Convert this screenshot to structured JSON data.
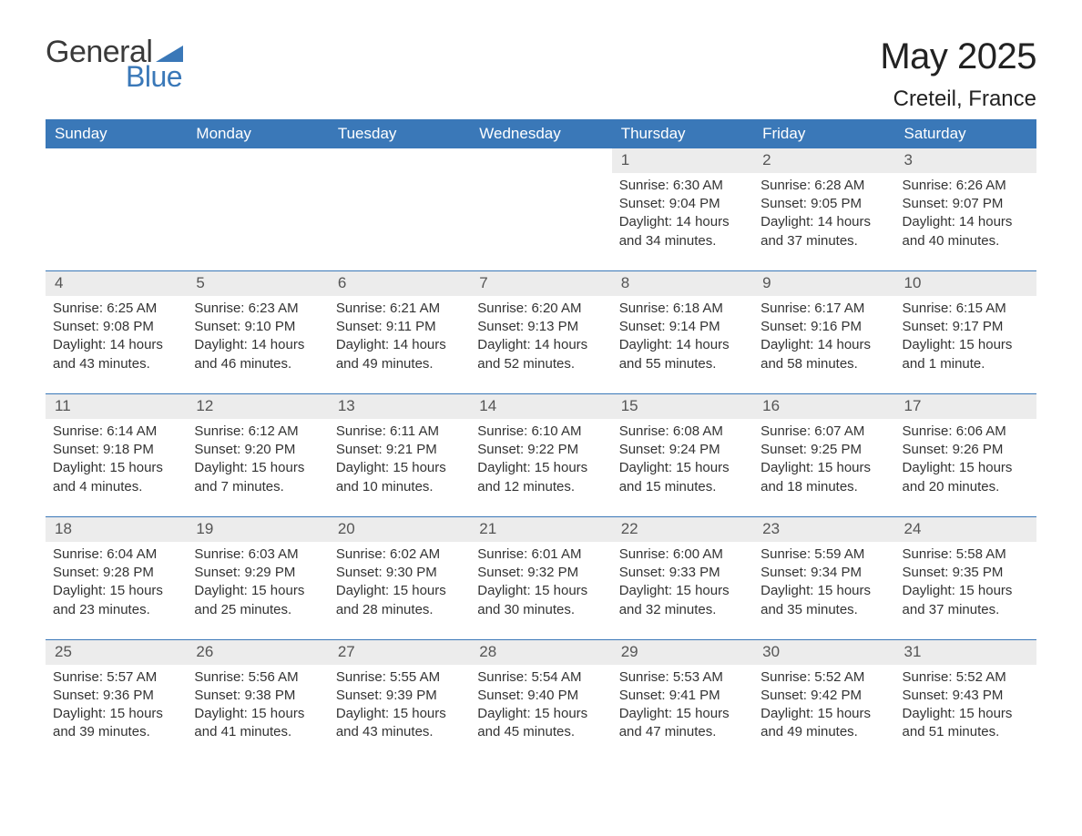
{
  "brand": {
    "word1": "General",
    "word2": "Blue",
    "tri_color": "#3a78b8"
  },
  "header": {
    "title": "May 2025",
    "location": "Creteil, France"
  },
  "colors": {
    "header_bg": "#3a78b8",
    "header_text": "#ffffff",
    "daynum_bg": "#ececec",
    "row_border": "#3a78b8",
    "body_text": "#333333",
    "page_bg": "#ffffff"
  },
  "columns": [
    "Sunday",
    "Monday",
    "Tuesday",
    "Wednesday",
    "Thursday",
    "Friday",
    "Saturday"
  ],
  "weeks": [
    [
      null,
      null,
      null,
      null,
      {
        "n": "1",
        "sunrise": "6:30 AM",
        "sunset": "9:04 PM",
        "daylight": "14 hours and 34 minutes."
      },
      {
        "n": "2",
        "sunrise": "6:28 AM",
        "sunset": "9:05 PM",
        "daylight": "14 hours and 37 minutes."
      },
      {
        "n": "3",
        "sunrise": "6:26 AM",
        "sunset": "9:07 PM",
        "daylight": "14 hours and 40 minutes."
      }
    ],
    [
      {
        "n": "4",
        "sunrise": "6:25 AM",
        "sunset": "9:08 PM",
        "daylight": "14 hours and 43 minutes."
      },
      {
        "n": "5",
        "sunrise": "6:23 AM",
        "sunset": "9:10 PM",
        "daylight": "14 hours and 46 minutes."
      },
      {
        "n": "6",
        "sunrise": "6:21 AM",
        "sunset": "9:11 PM",
        "daylight": "14 hours and 49 minutes."
      },
      {
        "n": "7",
        "sunrise": "6:20 AM",
        "sunset": "9:13 PM",
        "daylight": "14 hours and 52 minutes."
      },
      {
        "n": "8",
        "sunrise": "6:18 AM",
        "sunset": "9:14 PM",
        "daylight": "14 hours and 55 minutes."
      },
      {
        "n": "9",
        "sunrise": "6:17 AM",
        "sunset": "9:16 PM",
        "daylight": "14 hours and 58 minutes."
      },
      {
        "n": "10",
        "sunrise": "6:15 AM",
        "sunset": "9:17 PM",
        "daylight": "15 hours and 1 minute."
      }
    ],
    [
      {
        "n": "11",
        "sunrise": "6:14 AM",
        "sunset": "9:18 PM",
        "daylight": "15 hours and 4 minutes."
      },
      {
        "n": "12",
        "sunrise": "6:12 AM",
        "sunset": "9:20 PM",
        "daylight": "15 hours and 7 minutes."
      },
      {
        "n": "13",
        "sunrise": "6:11 AM",
        "sunset": "9:21 PM",
        "daylight": "15 hours and 10 minutes."
      },
      {
        "n": "14",
        "sunrise": "6:10 AM",
        "sunset": "9:22 PM",
        "daylight": "15 hours and 12 minutes."
      },
      {
        "n": "15",
        "sunrise": "6:08 AM",
        "sunset": "9:24 PM",
        "daylight": "15 hours and 15 minutes."
      },
      {
        "n": "16",
        "sunrise": "6:07 AM",
        "sunset": "9:25 PM",
        "daylight": "15 hours and 18 minutes."
      },
      {
        "n": "17",
        "sunrise": "6:06 AM",
        "sunset": "9:26 PM",
        "daylight": "15 hours and 20 minutes."
      }
    ],
    [
      {
        "n": "18",
        "sunrise": "6:04 AM",
        "sunset": "9:28 PM",
        "daylight": "15 hours and 23 minutes."
      },
      {
        "n": "19",
        "sunrise": "6:03 AM",
        "sunset": "9:29 PM",
        "daylight": "15 hours and 25 minutes."
      },
      {
        "n": "20",
        "sunrise": "6:02 AM",
        "sunset": "9:30 PM",
        "daylight": "15 hours and 28 minutes."
      },
      {
        "n": "21",
        "sunrise": "6:01 AM",
        "sunset": "9:32 PM",
        "daylight": "15 hours and 30 minutes."
      },
      {
        "n": "22",
        "sunrise": "6:00 AM",
        "sunset": "9:33 PM",
        "daylight": "15 hours and 32 minutes."
      },
      {
        "n": "23",
        "sunrise": "5:59 AM",
        "sunset": "9:34 PM",
        "daylight": "15 hours and 35 minutes."
      },
      {
        "n": "24",
        "sunrise": "5:58 AM",
        "sunset": "9:35 PM",
        "daylight": "15 hours and 37 minutes."
      }
    ],
    [
      {
        "n": "25",
        "sunrise": "5:57 AM",
        "sunset": "9:36 PM",
        "daylight": "15 hours and 39 minutes."
      },
      {
        "n": "26",
        "sunrise": "5:56 AM",
        "sunset": "9:38 PM",
        "daylight": "15 hours and 41 minutes."
      },
      {
        "n": "27",
        "sunrise": "5:55 AM",
        "sunset": "9:39 PM",
        "daylight": "15 hours and 43 minutes."
      },
      {
        "n": "28",
        "sunrise": "5:54 AM",
        "sunset": "9:40 PM",
        "daylight": "15 hours and 45 minutes."
      },
      {
        "n": "29",
        "sunrise": "5:53 AM",
        "sunset": "9:41 PM",
        "daylight": "15 hours and 47 minutes."
      },
      {
        "n": "30",
        "sunrise": "5:52 AM",
        "sunset": "9:42 PM",
        "daylight": "15 hours and 49 minutes."
      },
      {
        "n": "31",
        "sunrise": "5:52 AM",
        "sunset": "9:43 PM",
        "daylight": "15 hours and 51 minutes."
      }
    ]
  ],
  "labels": {
    "sunrise": "Sunrise: ",
    "sunset": "Sunset: ",
    "daylight": "Daylight: "
  }
}
